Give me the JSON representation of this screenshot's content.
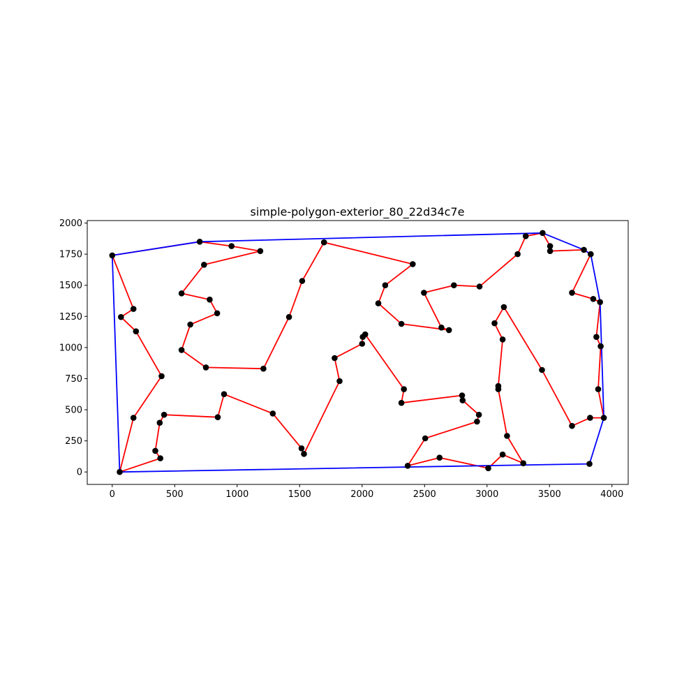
{
  "chart_data": {
    "type": "scatter",
    "title": "simple-polygon-exterior_80_22d34c7e",
    "xlabel": "",
    "ylabel": "",
    "xlim": [
      -200,
      4130
    ],
    "ylim": [
      -100,
      2020
    ],
    "xticks": [
      0,
      500,
      1000,
      1500,
      2000,
      2500,
      3000,
      3500,
      4000
    ],
    "yticks": [
      0,
      250,
      500,
      750,
      1000,
      1250,
      1500,
      1750,
      2000
    ],
    "grid": false,
    "colors": {
      "points": "#000000",
      "polygon": "#ff0000",
      "hull": "#0000ff"
    },
    "series": [
      {
        "role": "polygon",
        "color": "#ff0000",
        "points": [
          [
            0,
            1740
          ],
          [
            170,
            1310
          ],
          [
            70,
            1245
          ],
          [
            190,
            1130
          ],
          [
            395,
            770
          ],
          [
            170,
            435
          ],
          [
            60,
            0
          ],
          [
            385,
            110
          ],
          [
            345,
            170
          ],
          [
            380,
            395
          ],
          [
            415,
            460
          ],
          [
            845,
            440
          ],
          [
            895,
            625
          ],
          [
            1285,
            470
          ],
          [
            1515,
            190
          ],
          [
            1535,
            145
          ],
          [
            1820,
            730
          ],
          [
            1780,
            915
          ],
          [
            2000,
            1030
          ],
          [
            2005,
            1085
          ],
          [
            2025,
            1105
          ],
          [
            2335,
            665
          ],
          [
            2315,
            555
          ],
          [
            2800,
            615
          ],
          [
            2805,
            575
          ],
          [
            2935,
            460
          ],
          [
            2920,
            405
          ],
          [
            2505,
            270
          ],
          [
            2365,
            50
          ],
          [
            2620,
            115
          ],
          [
            3010,
            30
          ],
          [
            3125,
            140
          ],
          [
            3290,
            70
          ],
          [
            3160,
            290
          ],
          [
            3090,
            665
          ],
          [
            3090,
            690
          ],
          [
            3125,
            1065
          ],
          [
            3060,
            1195
          ],
          [
            3135,
            1325
          ],
          [
            3440,
            820
          ],
          [
            3680,
            370
          ],
          [
            3825,
            435
          ],
          [
            3935,
            435
          ],
          [
            3890,
            665
          ],
          [
            3910,
            1010
          ],
          [
            3875,
            1085
          ],
          [
            3905,
            1365
          ],
          [
            3850,
            1390
          ],
          [
            3680,
            1440
          ],
          [
            3830,
            1750
          ],
          [
            3775,
            1785
          ],
          [
            3505,
            1775
          ],
          [
            3505,
            1815
          ],
          [
            3445,
            1920
          ],
          [
            3310,
            1895
          ],
          [
            3245,
            1750
          ],
          [
            2940,
            1490
          ],
          [
            2735,
            1500
          ],
          [
            2495,
            1440
          ],
          [
            2635,
            1160
          ],
          [
            2695,
            1140
          ],
          [
            2315,
            1190
          ],
          [
            2130,
            1355
          ],
          [
            2185,
            1500
          ],
          [
            2405,
            1670
          ],
          [
            1695,
            1845
          ],
          [
            1520,
            1535
          ],
          [
            1415,
            1245
          ],
          [
            1210,
            830
          ],
          [
            750,
            840
          ],
          [
            555,
            980
          ],
          [
            625,
            1185
          ],
          [
            840,
            1275
          ],
          [
            780,
            1385
          ],
          [
            555,
            1435
          ],
          [
            735,
            1665
          ],
          [
            1185,
            1775
          ],
          [
            955,
            1815
          ],
          [
            700,
            1850
          ],
          [
            0,
            1740
          ]
        ]
      },
      {
        "role": "hull",
        "color": "#0000ff",
        "points": [
          [
            0,
            1740
          ],
          [
            700,
            1850
          ],
          [
            3445,
            1920
          ],
          [
            3775,
            1785
          ],
          [
            3830,
            1750
          ],
          [
            3905,
            1365
          ],
          [
            3935,
            435
          ],
          [
            3820,
            65
          ],
          [
            60,
            0
          ],
          [
            0,
            1740
          ]
        ]
      },
      {
        "role": "vertices",
        "color": "#000000",
        "points": [
          [
            0,
            1740
          ],
          [
            170,
            1310
          ],
          [
            70,
            1245
          ],
          [
            190,
            1130
          ],
          [
            395,
            770
          ],
          [
            170,
            435
          ],
          [
            60,
            0
          ],
          [
            385,
            110
          ],
          [
            345,
            170
          ],
          [
            380,
            395
          ],
          [
            415,
            460
          ],
          [
            845,
            440
          ],
          [
            895,
            625
          ],
          [
            1285,
            470
          ],
          [
            1515,
            190
          ],
          [
            1535,
            145
          ],
          [
            1820,
            730
          ],
          [
            1780,
            915
          ],
          [
            2000,
            1030
          ],
          [
            2005,
            1085
          ],
          [
            2025,
            1105
          ],
          [
            2335,
            665
          ],
          [
            2315,
            555
          ],
          [
            2800,
            615
          ],
          [
            2805,
            575
          ],
          [
            2935,
            460
          ],
          [
            2920,
            405
          ],
          [
            2505,
            270
          ],
          [
            2365,
            50
          ],
          [
            2620,
            115
          ],
          [
            3010,
            30
          ],
          [
            3125,
            140
          ],
          [
            3290,
            70
          ],
          [
            3160,
            290
          ],
          [
            3090,
            665
          ],
          [
            3090,
            690
          ],
          [
            3125,
            1065
          ],
          [
            3060,
            1195
          ],
          [
            3135,
            1325
          ],
          [
            3440,
            820
          ],
          [
            3680,
            370
          ],
          [
            3825,
            435
          ],
          [
            3935,
            435
          ],
          [
            3890,
            665
          ],
          [
            3910,
            1010
          ],
          [
            3875,
            1085
          ],
          [
            3905,
            1365
          ],
          [
            3850,
            1390
          ],
          [
            3680,
            1440
          ],
          [
            3830,
            1750
          ],
          [
            3775,
            1785
          ],
          [
            3505,
            1775
          ],
          [
            3505,
            1815
          ],
          [
            3445,
            1920
          ],
          [
            3310,
            1895
          ],
          [
            3245,
            1750
          ],
          [
            2940,
            1490
          ],
          [
            2735,
            1500
          ],
          [
            2495,
            1440
          ],
          [
            2635,
            1160
          ],
          [
            2695,
            1140
          ],
          [
            2315,
            1190
          ],
          [
            2130,
            1355
          ],
          [
            2185,
            1500
          ],
          [
            2405,
            1670
          ],
          [
            1695,
            1845
          ],
          [
            1520,
            1535
          ],
          [
            1415,
            1245
          ],
          [
            1210,
            830
          ],
          [
            750,
            840
          ],
          [
            555,
            980
          ],
          [
            625,
            1185
          ],
          [
            840,
            1275
          ],
          [
            780,
            1385
          ],
          [
            555,
            1435
          ],
          [
            735,
            1665
          ],
          [
            1185,
            1775
          ],
          [
            955,
            1815
          ],
          [
            700,
            1850
          ],
          [
            3820,
            65
          ]
        ]
      }
    ]
  }
}
